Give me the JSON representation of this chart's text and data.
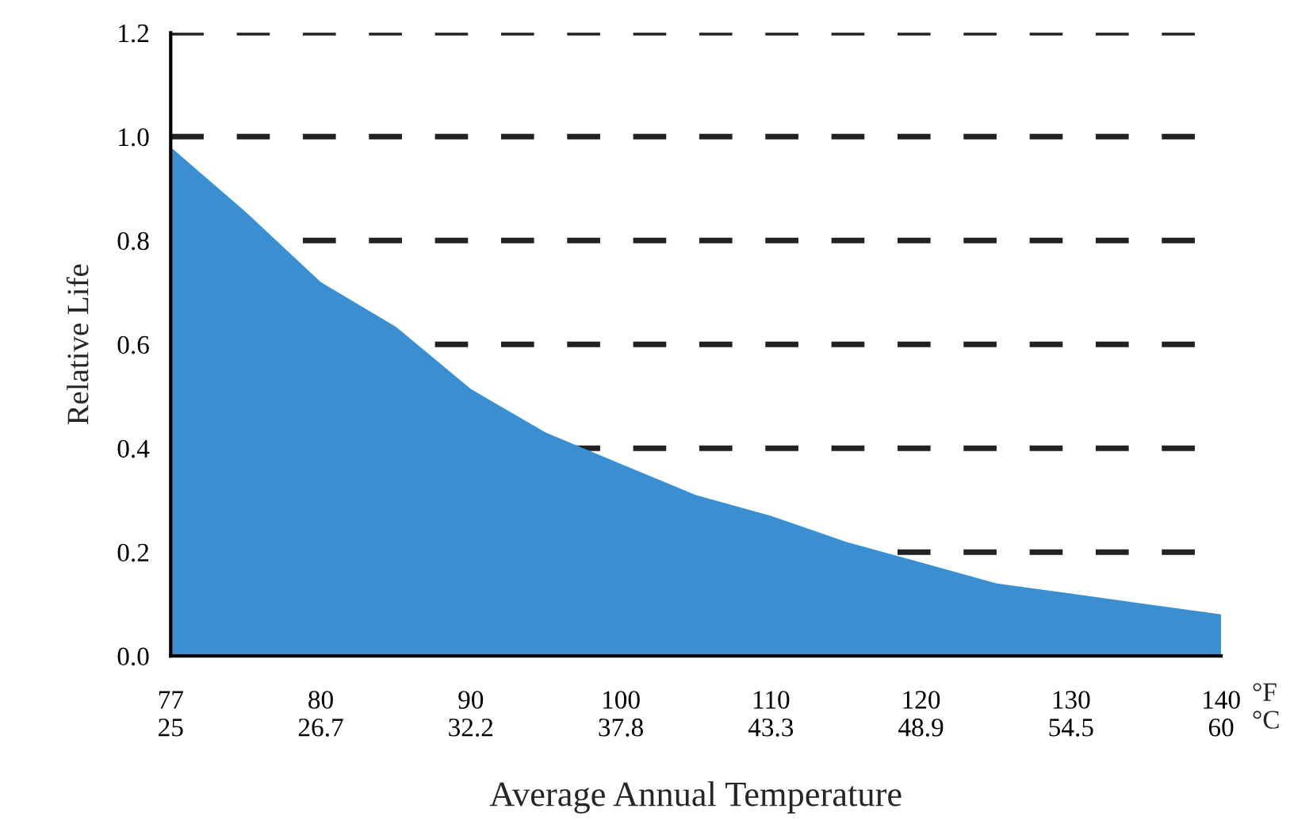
{
  "chart_data": {
    "type": "area",
    "xlabel": "Average Annual Temperature",
    "ylabel": "Relative Life",
    "categories": [
      "77\n25",
      null,
      "80\n26.7",
      null,
      "90\n32.2",
      null,
      "100\n37.8",
      null,
      "110\n43.3",
      null,
      "120\n48.9",
      null,
      "130\n54.5",
      null,
      "140\n60"
    ],
    "series": [
      {
        "color": "#3b8ed0",
        "values": [
          0.98,
          0.855,
          0.72,
          0.634,
          0.514,
          0.43,
          0.37,
          0.31,
          0.27,
          0.22,
          0.18,
          0.14,
          0.12,
          0.1,
          0.08
        ]
      }
    ],
    "ylim": [
      0,
      1.2
    ],
    "yticks": [
      {
        "value": 0,
        "label": "0.0"
      },
      0.2,
      0.4,
      0.6,
      0.8,
      {
        "value": 1,
        "label": "1.0"
      },
      1.2
    ],
    "grid": "y",
    "line_style": "dashed",
    "annotations": [
      "°F\n°C"
    ]
  }
}
